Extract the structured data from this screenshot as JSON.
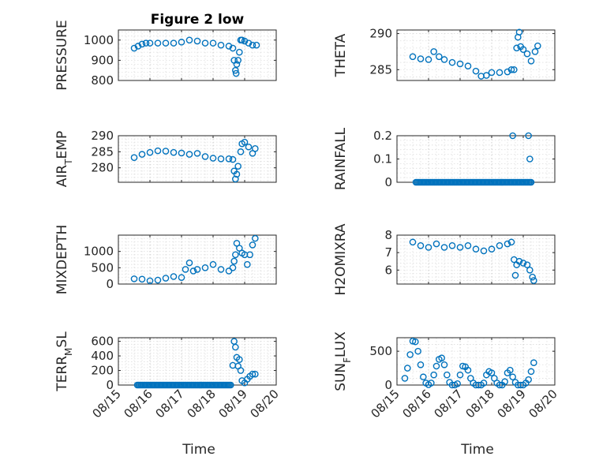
{
  "figure": {
    "background": "#ffffff",
    "marker_color": "#0072bd"
  },
  "chart_data": [
    {
      "type": "scatter",
      "title": "Figure 2 low",
      "ylabel": "PRESSURE",
      "xlim": [
        "08/15",
        "08/20"
      ],
      "ylim": [
        800,
        1050
      ],
      "yticks": [
        800,
        900,
        1000
      ],
      "xticks": [
        "08/15",
        "08/16",
        "08/17",
        "08/18",
        "08/19",
        "08/20"
      ],
      "grid": true,
      "marker": "o",
      "series": [
        {
          "x": [
            "08/15 12:00",
            "08/15 15:00",
            "08/15 18:00",
            "08/15 21:00",
            "08/16 00:00",
            "08/16 06:00",
            "08/16 12:00",
            "08/16 18:00",
            "08/17 00:00",
            "08/17 06:00",
            "08/17 12:00",
            "08/17 18:00",
            "08/18 00:00",
            "08/18 06:00",
            "08/18 12:00",
            "08/18 15:00",
            "08/18 16:00",
            "08/18 17:00",
            "08/18 17:30",
            "08/18 18:00",
            "08/18 19:00",
            "08/18 20:00",
            "08/18 21:00",
            "08/18 22:00",
            "08/19 00:00",
            "08/19 03:00",
            "08/19 06:00",
            "08/19 09:00"
          ],
          "y": [
            960,
            970,
            980,
            985,
            985,
            985,
            985,
            985,
            990,
            1000,
            995,
            985,
            985,
            975,
            970,
            960,
            900,
            850,
            835,
            880,
            900,
            940,
            1000,
            1000,
            995,
            985,
            975,
            975
          ]
        }
      ]
    },
    {
      "type": "scatter",
      "title": "",
      "ylabel": "THETA",
      "xlim": [
        "08/15",
        "08/20"
      ],
      "ylim": [
        283.5,
        290.5
      ],
      "yticks": [
        285,
        290
      ],
      "xticks": [
        "08/15",
        "08/16",
        "08/17",
        "08/18",
        "08/19",
        "08/20"
      ],
      "grid": true,
      "marker": "o",
      "series": [
        {
          "x": [
            "08/15 12:00",
            "08/15 18:00",
            "08/16 00:00",
            "08/16 04:00",
            "08/16 08:00",
            "08/16 12:00",
            "08/16 18:00",
            "08/17 00:00",
            "08/17 06:00",
            "08/17 12:00",
            "08/17 16:00",
            "08/17 20:00",
            "08/18 00:00",
            "08/18 06:00",
            "08/18 12:00",
            "08/18 15:00",
            "08/18 17:00",
            "08/18 19:00",
            "08/18 20:00",
            "08/18 21:00",
            "08/18 22:00",
            "08/19 00:00",
            "08/19 03:00",
            "08/19 06:00",
            "08/19 09:00",
            "08/19 11:00"
          ],
          "y": [
            286.8,
            286.5,
            286.4,
            287.5,
            286.8,
            286.4,
            286,
            285.8,
            285.5,
            284.8,
            284.1,
            284.2,
            284.6,
            284.6,
            284.7,
            285,
            285,
            288,
            289.5,
            290.2,
            288.2,
            287.8,
            287.2,
            286.2,
            287.5,
            288.3
          ]
        }
      ]
    },
    {
      "type": "scatter",
      "title": "",
      "ylabel": "AIR",
      "ylabel_sub": "T",
      "ylabel_rest": "EMP",
      "xlim": [
        "08/15",
        "08/20"
      ],
      "ylim": [
        275.5,
        290
      ],
      "yticks": [
        280,
        285,
        290
      ],
      "xticks": [
        "08/15",
        "08/16",
        "08/17",
        "08/18",
        "08/19",
        "08/20"
      ],
      "grid": true,
      "marker": "o",
      "series": [
        {
          "x": [
            "08/15 12:00",
            "08/15 18:00",
            "08/16 00:00",
            "08/16 06:00",
            "08/16 12:00",
            "08/16 18:00",
            "08/17 00:00",
            "08/17 06:00",
            "08/17 12:00",
            "08/17 18:00",
            "08/18 00:00",
            "08/18 06:00",
            "08/18 12:00",
            "08/18 15:00",
            "08/18 16:00",
            "08/18 17:00",
            "08/18 18:00",
            "08/18 19:00",
            "08/18 21:00",
            "08/18 22:00",
            "08/19 00:00",
            "08/19 03:00",
            "08/19 06:00",
            "08/19 08:00"
          ],
          "y": [
            283.2,
            284.2,
            284.8,
            285.3,
            285.2,
            284.8,
            284.6,
            284.2,
            284.5,
            283.5,
            283,
            282.8,
            282.8,
            282.6,
            279,
            276.5,
            278,
            280.5,
            285,
            287.5,
            288,
            286.5,
            284.5,
            286
          ]
        }
      ]
    },
    {
      "type": "scatter",
      "title": "",
      "ylabel": "RAINFALL",
      "xlim": [
        "08/15",
        "08/20"
      ],
      "ylim": [
        0,
        0.2
      ],
      "yticks": [
        0,
        0.1,
        0.2
      ],
      "ytick_labels": [
        "0",
        "0.1",
        "0.2"
      ],
      "xticks": [
        "08/15",
        "08/16",
        "08/17",
        "08/18",
        "08/19",
        "08/20"
      ],
      "grid": true,
      "marker": "o",
      "series": [
        {
          "x": [
            "08/18 16:00",
            "08/19 04:00",
            "08/19 05:00",
            "08/19 06:00"
          ],
          "y": [
            0.2,
            0.2,
            0.1,
            0
          ],
          "zero_run": [
            "08/15 00:00",
            "08/19 06:00"
          ]
        }
      ]
    },
    {
      "type": "scatter",
      "title": "",
      "ylabel": "MIXDEPTH",
      "xlim": [
        "08/15",
        "08/20"
      ],
      "ylim": [
        0,
        1500
      ],
      "yticks": [
        0,
        500,
        1000
      ],
      "xticks": [
        "08/15",
        "08/16",
        "08/17",
        "08/18",
        "08/19",
        "08/20"
      ],
      "grid": true,
      "marker": "o",
      "series": [
        {
          "x": [
            "08/15 12:00",
            "08/15 18:00",
            "08/16 00:00",
            "08/16 06:00",
            "08/16 12:00",
            "08/16 18:00",
            "08/17 00:00",
            "08/17 03:00",
            "08/17 06:00",
            "08/17 09:00",
            "08/17 12:00",
            "08/17 18:00",
            "08/18 00:00",
            "08/18 06:00",
            "08/18 12:00",
            "08/18 15:00",
            "08/18 16:00",
            "08/18 17:00",
            "08/18 18:00",
            "08/18 20:00",
            "08/18 22:00",
            "08/19 00:00",
            "08/19 02:00",
            "08/19 04:00",
            "08/19 06:00",
            "08/19 08:00"
          ],
          "y": [
            160,
            150,
            100,
            120,
            180,
            230,
            200,
            450,
            650,
            400,
            450,
            500,
            600,
            450,
            400,
            500,
            700,
            900,
            1250,
            1100,
            950,
            900,
            600,
            900,
            1200,
            1400
          ]
        }
      ]
    },
    {
      "type": "scatter",
      "title": "",
      "ylabel": "H2OMIXRA",
      "xlim": [
        "08/15",
        "08/20"
      ],
      "ylim": [
        5.2,
        8
      ],
      "yticks": [
        6,
        7,
        8
      ],
      "xticks": [
        "08/15",
        "08/16",
        "08/17",
        "08/18",
        "08/19",
        "08/20"
      ],
      "grid": true,
      "marker": "o",
      "series": [
        {
          "x": [
            "08/15 12:00",
            "08/15 18:00",
            "08/16 00:00",
            "08/16 06:00",
            "08/16 12:00",
            "08/16 18:00",
            "08/17 00:00",
            "08/17 06:00",
            "08/17 12:00",
            "08/17 18:00",
            "08/18 00:00",
            "08/18 06:00",
            "08/18 12:00",
            "08/18 15:00",
            "08/18 17:00",
            "08/18 18:00",
            "08/18 19:00",
            "08/18 21:00",
            "08/19 00:00",
            "08/19 03:00",
            "08/19 05:00",
            "08/19 07:00",
            "08/19 08:00"
          ],
          "y": [
            7.6,
            7.4,
            7.3,
            7.5,
            7.3,
            7.4,
            7.3,
            7.4,
            7.2,
            7.1,
            7.2,
            7.4,
            7.5,
            7.6,
            6.6,
            5.7,
            6.3,
            6.5,
            6.4,
            6.3,
            6,
            5.6,
            5.4
          ]
        }
      ]
    },
    {
      "type": "scatter",
      "title": "",
      "ylabel": "TERR",
      "ylabel_sub": "M",
      "ylabel_rest": "SL",
      "xlim": [
        "08/15",
        "08/20"
      ],
      "ylim": [
        0,
        650
      ],
      "yticks": [
        0,
        200,
        400,
        600
      ],
      "xticks": [
        "08/15",
        "08/16",
        "08/17",
        "08/18",
        "08/19",
        "08/20"
      ],
      "xtick_labels_shown": true,
      "xlabel": "Time",
      "grid": true,
      "marker": "o",
      "series": [
        {
          "x": [
            "08/18 15:00",
            "08/18 16:00",
            "08/18 17:00",
            "08/18 18:00",
            "08/18 19:00",
            "08/18 20:00",
            "08/18 21:00",
            "08/18 22:00",
            "08/19 00:00",
            "08/19 02:00",
            "08/19 04:00",
            "08/19 06:00",
            "08/19 08:00"
          ],
          "y": [
            270,
            600,
            520,
            380,
            260,
            350,
            200,
            60,
            30,
            80,
            120,
            150,
            150
          ],
          "zero_run": [
            "08/15 00:00",
            "08/18 14:00"
          ]
        }
      ]
    },
    {
      "type": "scatter",
      "title": "",
      "ylabel": "SUN",
      "ylabel_sub": "F",
      "ylabel_rest": "LUX",
      "xlim": [
        "08/15",
        "08/20"
      ],
      "ylim": [
        0,
        700
      ],
      "yticks": [
        0,
        500
      ],
      "xticks": [
        "08/15",
        "08/16",
        "08/17",
        "08/18",
        "08/19",
        "08/20"
      ],
      "xtick_labels_shown": true,
      "xlabel": "Time",
      "grid": true,
      "marker": "o",
      "series": [
        {
          "x": [
            "08/15 06:00",
            "08/15 08:00",
            "08/15 10:00",
            "08/15 12:00",
            "08/15 14:00",
            "08/15 16:00",
            "08/15 18:00",
            "08/15 20:00",
            "08/15 22:00",
            "08/16 00:00",
            "08/16 02:00",
            "08/16 04:00",
            "08/16 06:00",
            "08/16 08:00",
            "08/16 10:00",
            "08/16 12:00",
            "08/16 14:00",
            "08/16 16:00",
            "08/16 18:00",
            "08/16 20:00",
            "08/16 22:00",
            "08/17 00:00",
            "08/17 02:00",
            "08/17 04:00",
            "08/17 06:00",
            "08/17 08:00",
            "08/17 10:00",
            "08/17 12:00",
            "08/17 14:00",
            "08/17 16:00",
            "08/17 18:00",
            "08/17 20:00",
            "08/17 22:00",
            "08/18 00:00",
            "08/18 02:00",
            "08/18 04:00",
            "08/18 06:00",
            "08/18 08:00",
            "08/18 10:00",
            "08/18 12:00",
            "08/18 14:00",
            "08/18 16:00",
            "08/18 18:00",
            "08/18 20:00",
            "08/18 22:00",
            "08/19 00:00",
            "08/19 02:00",
            "08/19 04:00",
            "08/19 06:00",
            "08/19 08:00"
          ],
          "y": [
            100,
            250,
            450,
            650,
            640,
            500,
            300,
            120,
            30,
            5,
            30,
            150,
            280,
            380,
            400,
            300,
            150,
            40,
            0,
            0,
            20,
            150,
            280,
            270,
            220,
            100,
            30,
            0,
            0,
            0,
            30,
            150,
            200,
            180,
            100,
            30,
            0,
            0,
            50,
            180,
            220,
            120,
            40,
            0,
            0,
            0,
            30,
            80,
            200,
            330
          ]
        }
      ]
    }
  ]
}
